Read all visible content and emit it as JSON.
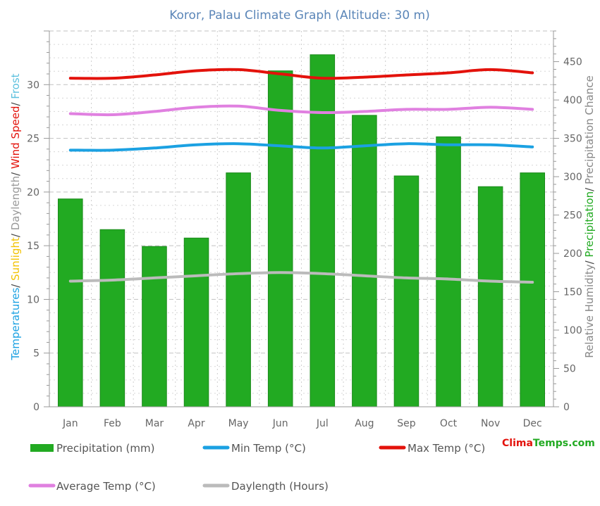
{
  "colors": {
    "background": "#ffffff",
    "grid": "#bbbbbb",
    "axis": "#999999",
    "title": "#5b86b8",
    "tick": "#666666",
    "precipitation": "#22aa22",
    "precipitation_edge": "#1a8a1a",
    "min_temp": "#1ba1e2",
    "max_temp": "#e3120b",
    "avg_temp": "#e080e0",
    "daylength": "#bbbbbb",
    "brand_red": "#e3120b",
    "brand_green": "#22aa22"
  },
  "left_axis_label": [
    {
      "text": "Temperatures",
      "color": "#1ba1e2"
    },
    {
      "text": "/ ",
      "color": "#444444"
    },
    {
      "text": "Sunlight",
      "color": "#f2c200"
    },
    {
      "text": "/ ",
      "color": "#444444"
    },
    {
      "text": "Daylength",
      "color": "#999999"
    },
    {
      "text": "/ ",
      "color": "#444444"
    },
    {
      "text": "Wind Speed",
      "color": "#e3120b"
    },
    {
      "text": "/ ",
      "color": "#444444"
    },
    {
      "text": "Frost",
      "color": "#5bc0de"
    }
  ],
  "right_axis_label": [
    {
      "text": "Relative Humidity",
      "color": "#888888"
    },
    {
      "text": "/ ",
      "color": "#444444"
    },
    {
      "text": "Precipitation",
      "color": "#22aa22"
    },
    {
      "text": "/ ",
      "color": "#444444"
    },
    {
      "text": "Precipitation Chance",
      "color": "#888888"
    }
  ],
  "chart_data": {
    "type": "bar",
    "title": "Koror, Palau Climate Graph (Altitude: 30 m)",
    "categories": [
      "Jan",
      "Feb",
      "Mar",
      "Apr",
      "May",
      "Jun",
      "Jul",
      "Aug",
      "Sep",
      "Oct",
      "Nov",
      "Dec"
    ],
    "left_axis": {
      "ylim": [
        0,
        35
      ],
      "ticks": [
        0,
        5,
        10,
        15,
        20,
        25,
        30
      ]
    },
    "right_axis": {
      "ylim": [
        0,
        490
      ],
      "ticks": [
        0,
        50,
        100,
        150,
        200,
        250,
        300,
        350,
        400,
        450
      ]
    },
    "grid": true,
    "legend_position": "bottom",
    "series": [
      {
        "name": "Precipitation (mm)",
        "kind": "bar",
        "axis": "right",
        "values": [
          271,
          231,
          209,
          220,
          305,
          438,
          459,
          380,
          301,
          352,
          287,
          305
        ]
      },
      {
        "name": "Min Temp (°C)",
        "kind": "line",
        "axis": "left",
        "values": [
          23.9,
          23.9,
          24.1,
          24.4,
          24.5,
          24.3,
          24.1,
          24.3,
          24.5,
          24.4,
          24.4,
          24.2
        ]
      },
      {
        "name": "Max Temp (°C)",
        "kind": "line",
        "axis": "left",
        "values": [
          30.6,
          30.6,
          30.9,
          31.3,
          31.4,
          31.0,
          30.6,
          30.7,
          30.9,
          31.1,
          31.4,
          31.1
        ]
      },
      {
        "name": "Average Temp (°C)",
        "kind": "line",
        "axis": "left",
        "values": [
          27.3,
          27.2,
          27.5,
          27.9,
          28.0,
          27.6,
          27.4,
          27.5,
          27.7,
          27.7,
          27.9,
          27.7
        ]
      },
      {
        "name": "Daylength (Hours)",
        "kind": "line",
        "axis": "left",
        "values": [
          11.7,
          11.8,
          12.0,
          12.2,
          12.4,
          12.5,
          12.4,
          12.2,
          12.0,
          11.9,
          11.7,
          11.6
        ]
      }
    ]
  },
  "brand": {
    "part1": "Clima",
    "part2": "Temps",
    "part3": ".com"
  }
}
